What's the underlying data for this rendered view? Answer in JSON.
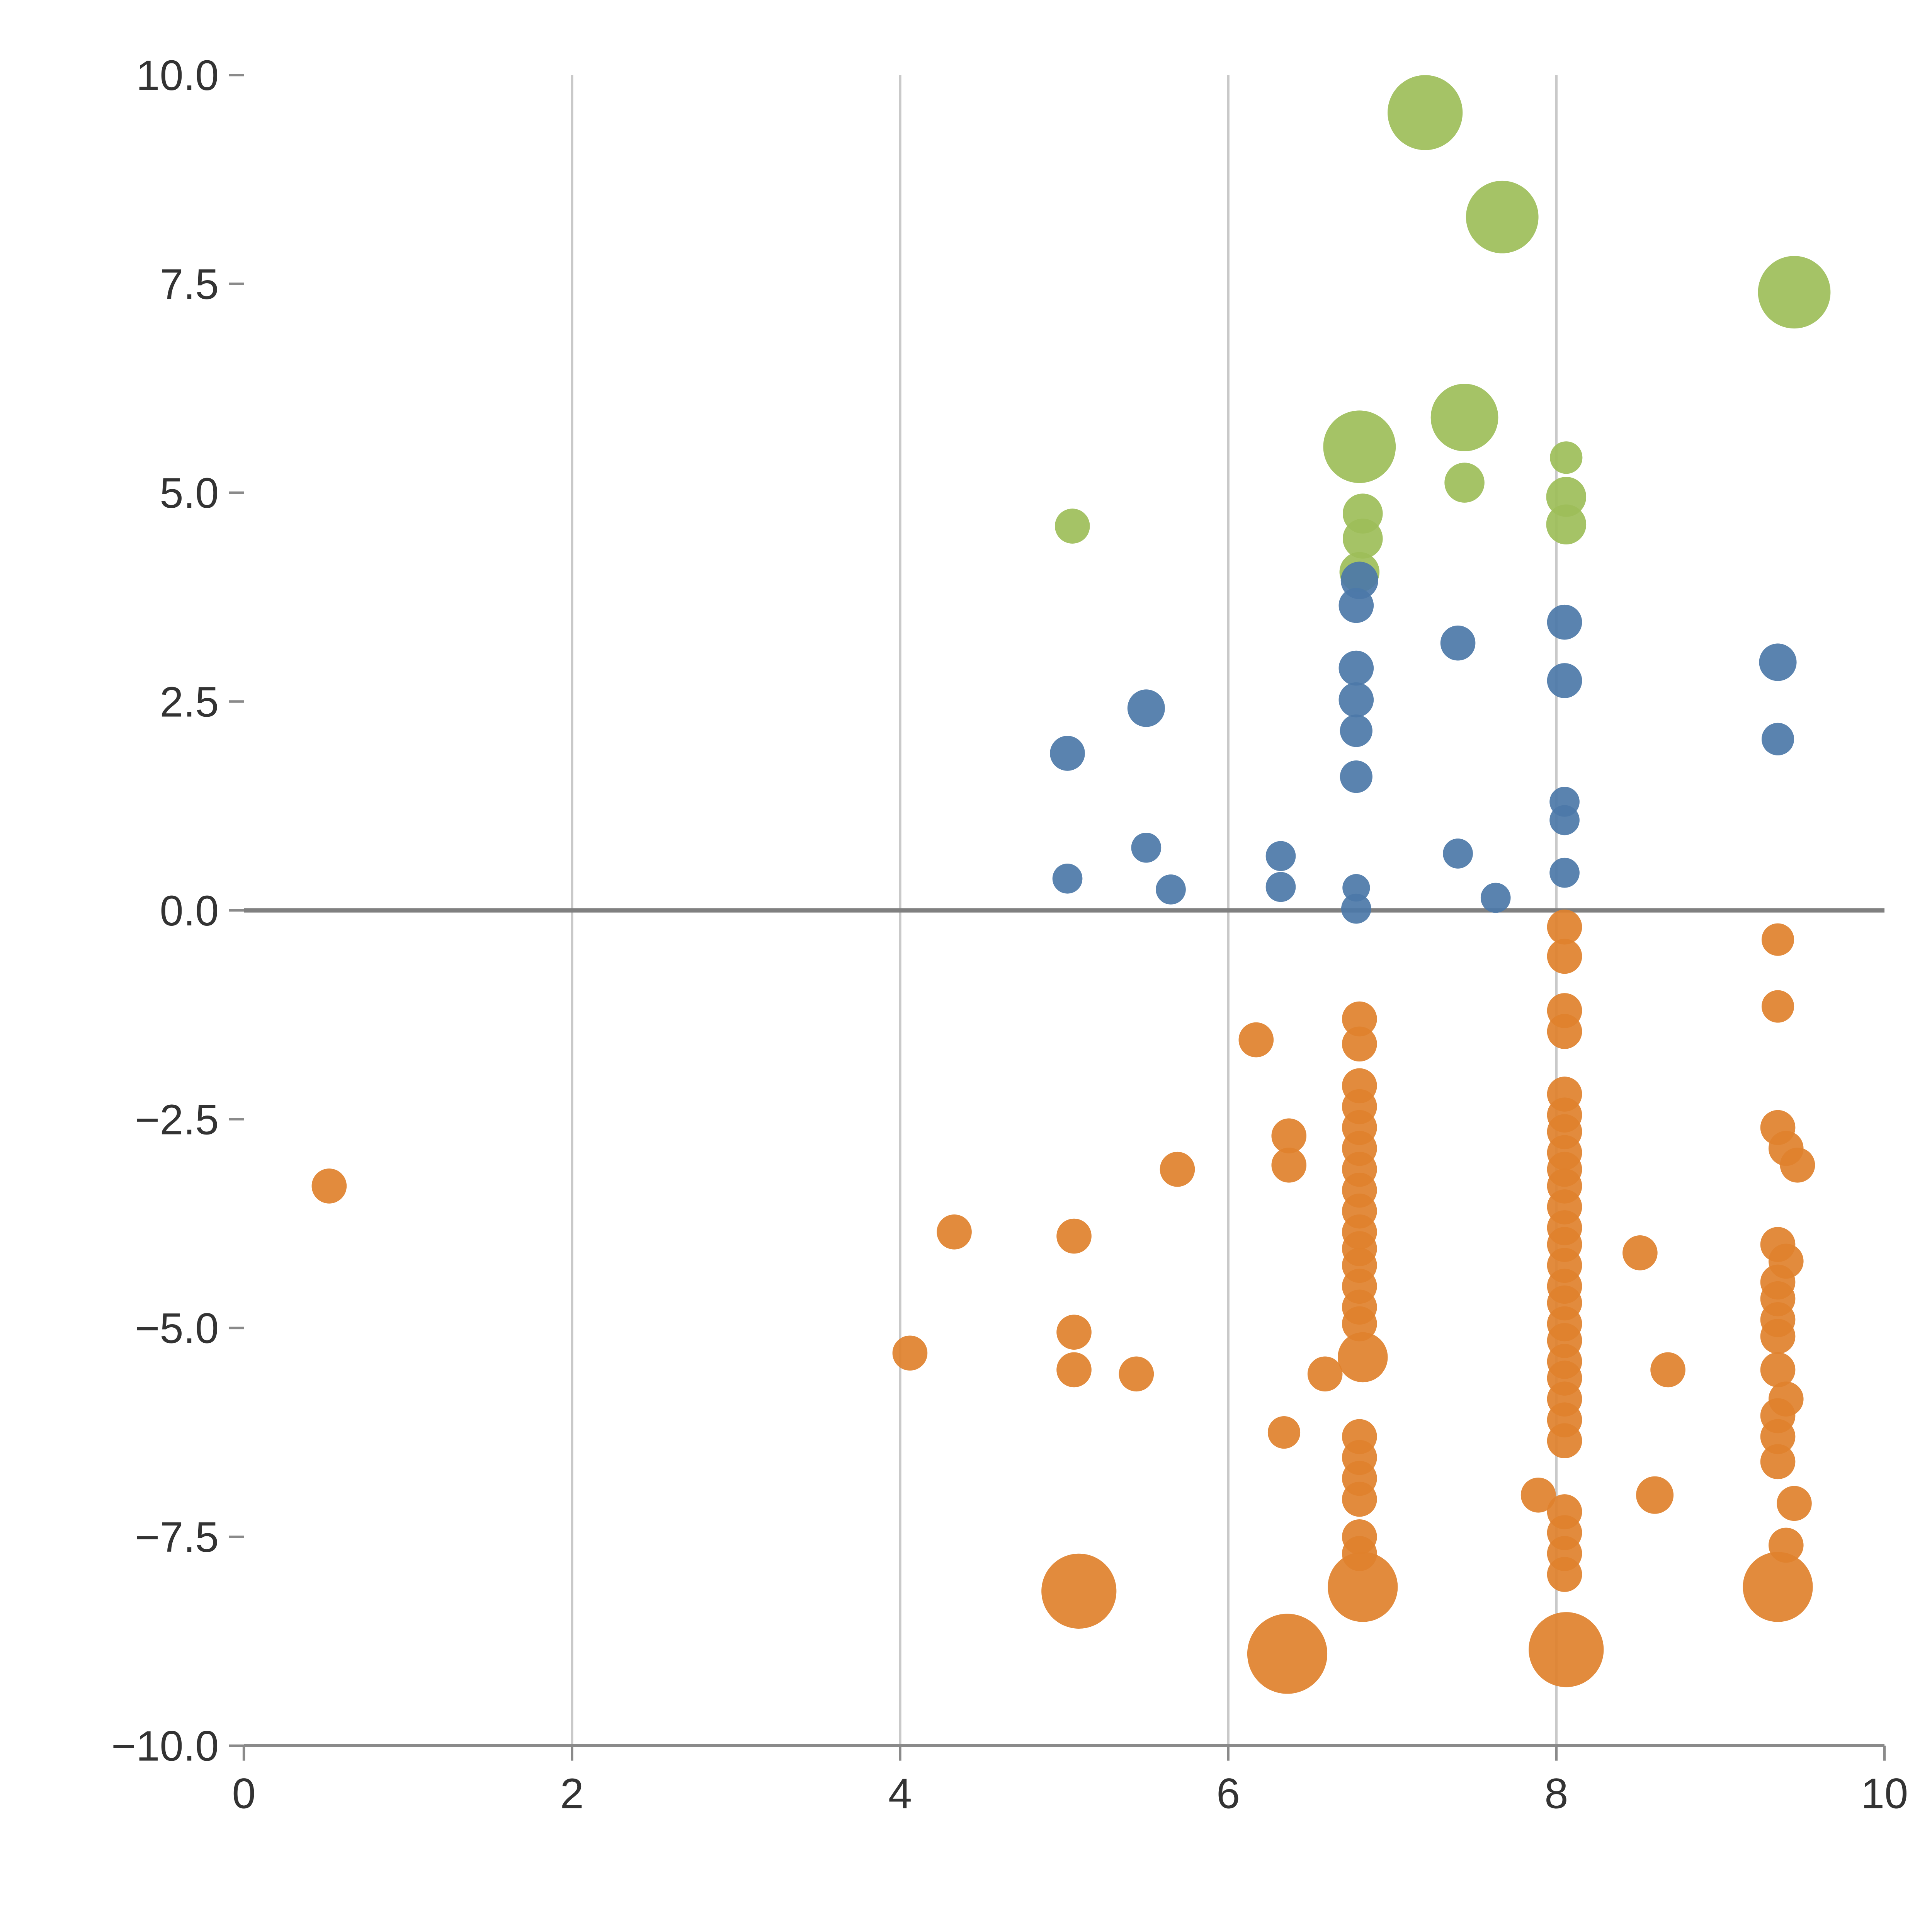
{
  "page": {
    "background": "#ffffff"
  },
  "chart_data": {
    "type": "scatter",
    "title": "",
    "subtitle": "",
    "xlabel": "",
    "ylabel": "",
    "xlim": [
      0,
      10
    ],
    "ylim": [
      -10,
      10
    ],
    "x_ticks": [
      "0",
      "2",
      "4",
      "6",
      "8",
      "10"
    ],
    "x_tick_values": [
      0,
      2,
      4,
      6,
      8,
      10
    ],
    "y_ticks": [
      "10.0",
      "7.5",
      "5.0",
      "2.5",
      "0.0",
      "−2.5",
      "−5.0",
      "−7.5",
      "−10.0"
    ],
    "y_tick_values": [
      10,
      7.5,
      5,
      2.5,
      0,
      -2.5,
      -5,
      -7.5,
      -10
    ],
    "legend_position": "none",
    "gridlines": {
      "vertical_at": [
        2,
        4,
        6,
        8
      ],
      "color": "#c9c9c9",
      "zero_line_value": 0,
      "zero_line_color": "#808080"
    },
    "axis": {
      "spine_color": "#8a8a8a",
      "tick_color": "#8a8a8a",
      "label_color": "#333333"
    },
    "point_format": "each point is [x, y, radius_px]",
    "series": [
      {
        "name": "series-green",
        "color": "#9dbe59",
        "points_xyr": [
          [
            7.2,
            9.55,
            30
          ],
          [
            7.67,
            8.3,
            29
          ],
          [
            9.45,
            7.4,
            29
          ],
          [
            7.44,
            5.9,
            27
          ],
          [
            6.8,
            5.55,
            29
          ],
          [
            7.44,
            5.12,
            16
          ],
          [
            8.06,
            5.42,
            13
          ],
          [
            8.06,
            4.95,
            16
          ],
          [
            8.06,
            4.62,
            16
          ],
          [
            6.82,
            4.75,
            16
          ],
          [
            6.82,
            4.45,
            16
          ],
          [
            5.05,
            4.6,
            14
          ],
          [
            6.8,
            4.05,
            16
          ]
        ]
      },
      {
        "name": "series-blue",
        "color": "#4c78a8",
        "points_xyr": [
          [
            6.8,
            3.95,
            15
          ],
          [
            6.78,
            3.65,
            14
          ],
          [
            8.05,
            3.45,
            14
          ],
          [
            7.4,
            3.2,
            14
          ],
          [
            9.35,
            2.97,
            15
          ],
          [
            6.78,
            2.9,
            14
          ],
          [
            8.05,
            2.75,
            14
          ],
          [
            6.78,
            2.52,
            14
          ],
          [
            5.5,
            2.42,
            15
          ],
          [
            6.78,
            2.15,
            13
          ],
          [
            9.35,
            2.05,
            13
          ],
          [
            5.02,
            1.88,
            14
          ],
          [
            6.78,
            1.6,
            13
          ],
          [
            8.05,
            1.3,
            12
          ],
          [
            8.05,
            1.08,
            12
          ],
          [
            5.5,
            0.75,
            12
          ],
          [
            7.4,
            0.68,
            12
          ],
          [
            6.32,
            0.65,
            12
          ],
          [
            8.05,
            0.45,
            12
          ],
          [
            5.02,
            0.38,
            12
          ],
          [
            5.65,
            0.25,
            12
          ],
          [
            6.32,
            0.28,
            12
          ],
          [
            6.78,
            0.27,
            11
          ],
          [
            7.63,
            0.15,
            12
          ],
          [
            6.78,
            0.02,
            12
          ]
        ]
      },
      {
        "name": "series-orange",
        "color": "#e0812c",
        "points_xyr": [
          [
            0.52,
            -3.3,
            14
          ],
          [
            4.33,
            -3.85,
            14
          ],
          [
            5.06,
            -3.9,
            14
          ],
          [
            5.69,
            -3.1,
            14
          ],
          [
            6.17,
            -1.55,
            14
          ],
          [
            6.37,
            -2.7,
            14
          ],
          [
            6.37,
            -3.05,
            14
          ],
          [
            4.06,
            -5.3,
            14
          ],
          [
            5.06,
            -5.05,
            14
          ],
          [
            5.06,
            -5.5,
            14
          ],
          [
            5.44,
            -5.55,
            14
          ],
          [
            6.59,
            -5.55,
            14
          ],
          [
            6.82,
            -5.35,
            20
          ],
          [
            6.34,
            -6.25,
            13
          ],
          [
            8.51,
            -4.1,
            14
          ],
          [
            8.68,
            -5.5,
            14
          ],
          [
            8.6,
            -7.0,
            15
          ],
          [
            7.89,
            -7.0,
            14
          ],
          [
            5.09,
            -8.15,
            30
          ],
          [
            6.36,
            -8.9,
            32
          ],
          [
            6.82,
            -8.1,
            28
          ],
          [
            8.06,
            -8.85,
            30
          ],
          [
            9.35,
            -8.1,
            28
          ],
          [
            6.8,
            -1.3,
            14
          ],
          [
            6.8,
            -1.6,
            14
          ],
          [
            6.8,
            -2.1,
            14
          ],
          [
            6.8,
            -2.35,
            14
          ],
          [
            6.8,
            -2.6,
            14
          ],
          [
            6.8,
            -2.85,
            14
          ],
          [
            6.8,
            -3.1,
            14
          ],
          [
            6.8,
            -3.35,
            14
          ],
          [
            6.8,
            -3.6,
            14
          ],
          [
            6.8,
            -3.85,
            14
          ],
          [
            6.8,
            -4.05,
            14
          ],
          [
            6.8,
            -4.25,
            14
          ],
          [
            6.8,
            -4.5,
            14
          ],
          [
            6.8,
            -4.75,
            14
          ],
          [
            6.8,
            -4.95,
            14
          ],
          [
            6.8,
            -6.3,
            14
          ],
          [
            6.8,
            -6.55,
            14
          ],
          [
            6.8,
            -6.8,
            14
          ],
          [
            6.8,
            -7.05,
            14
          ],
          [
            6.8,
            -7.5,
            14
          ],
          [
            6.8,
            -7.7,
            14
          ],
          [
            8.05,
            -0.2,
            14
          ],
          [
            8.05,
            -0.55,
            14
          ],
          [
            8.05,
            -1.2,
            14
          ],
          [
            8.05,
            -1.45,
            14
          ],
          [
            8.05,
            -2.2,
            14
          ],
          [
            8.05,
            -2.45,
            14
          ],
          [
            8.05,
            -2.65,
            14
          ],
          [
            8.05,
            -2.9,
            14
          ],
          [
            8.05,
            -3.1,
            14
          ],
          [
            8.05,
            -3.3,
            14
          ],
          [
            8.05,
            -3.55,
            14
          ],
          [
            8.05,
            -3.8,
            14
          ],
          [
            8.05,
            -4.0,
            14
          ],
          [
            8.05,
            -4.25,
            14
          ],
          [
            8.05,
            -4.5,
            14
          ],
          [
            8.05,
            -4.7,
            14
          ],
          [
            8.05,
            -4.95,
            14
          ],
          [
            8.05,
            -5.15,
            14
          ],
          [
            8.05,
            -5.4,
            14
          ],
          [
            8.05,
            -5.6,
            14
          ],
          [
            8.05,
            -5.85,
            14
          ],
          [
            8.05,
            -6.1,
            14
          ],
          [
            8.05,
            -6.35,
            14
          ],
          [
            8.05,
            -7.2,
            14
          ],
          [
            8.05,
            -7.45,
            14
          ],
          [
            8.05,
            -7.7,
            14
          ],
          [
            8.05,
            -7.95,
            14
          ],
          [
            9.35,
            -0.35,
            13
          ],
          [
            9.35,
            -1.15,
            13
          ],
          [
            9.35,
            -2.6,
            14
          ],
          [
            9.4,
            -2.85,
            14
          ],
          [
            9.47,
            -3.05,
            14
          ],
          [
            9.35,
            -4.0,
            14
          ],
          [
            9.4,
            -4.2,
            14
          ],
          [
            9.35,
            -4.45,
            14
          ],
          [
            9.35,
            -4.65,
            14
          ],
          [
            9.35,
            -4.9,
            14
          ],
          [
            9.35,
            -5.1,
            14
          ],
          [
            9.35,
            -5.5,
            14
          ],
          [
            9.4,
            -5.85,
            14
          ],
          [
            9.35,
            -6.05,
            14
          ],
          [
            9.35,
            -6.3,
            14
          ],
          [
            9.35,
            -6.6,
            14
          ],
          [
            9.45,
            -7.1,
            14
          ],
          [
            9.4,
            -7.6,
            14
          ]
        ]
      }
    ]
  }
}
